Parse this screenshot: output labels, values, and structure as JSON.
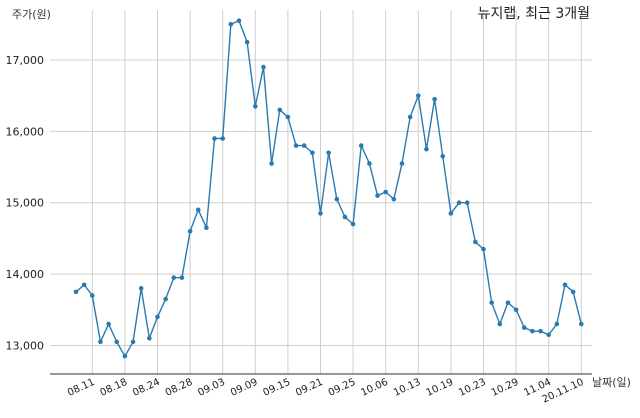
{
  "chart_data": {
    "type": "line",
    "title": "뉴지랩, 최근 3개월",
    "ylabel": "주가(원)",
    "xlabel": "날짜(일)",
    "ylim": [
      12600,
      17700
    ],
    "yticks": [
      13000,
      14000,
      15000,
      16000,
      17000
    ],
    "ytick_labels": [
      "13,000",
      "14,000",
      "15,000",
      "16,000",
      "17,000"
    ],
    "xtick_labels": [
      "08.11",
      "08.18",
      "08.24",
      "08.28",
      "09.03",
      "09.09",
      "09.15",
      "09.21",
      "09.25",
      "10.06",
      "10.13",
      "10.19",
      "10.23",
      "10.29",
      "11.04",
      "20.11.10"
    ],
    "xtick_index": [
      2,
      6,
      10,
      14,
      18,
      22,
      26,
      30,
      34,
      38,
      42,
      46,
      50,
      54,
      58,
      62
    ],
    "grid": true,
    "color": "#2a7ab0",
    "series": [
      {
        "values": [
          13750,
          13850,
          13700,
          13050,
          13300,
          13050,
          12850,
          13050,
          13800,
          13100,
          13400,
          13650,
          13950,
          13950,
          14600,
          14900,
          14650,
          15900,
          15900,
          17500,
          17550,
          17250,
          16350,
          16900,
          15550,
          16300,
          16200,
          15800,
          15800,
          15700,
          14850,
          15700,
          15050,
          14800,
          14700,
          15800,
          15550,
          15100,
          15150,
          15050,
          15550,
          16200,
          16500,
          15750,
          16450,
          15650,
          14850,
          15000,
          15000,
          14450,
          14350,
          13600,
          13300,
          13600,
          13500,
          13250,
          13200,
          13200,
          13150,
          13300,
          13850,
          13750,
          13300
        ]
      }
    ]
  }
}
